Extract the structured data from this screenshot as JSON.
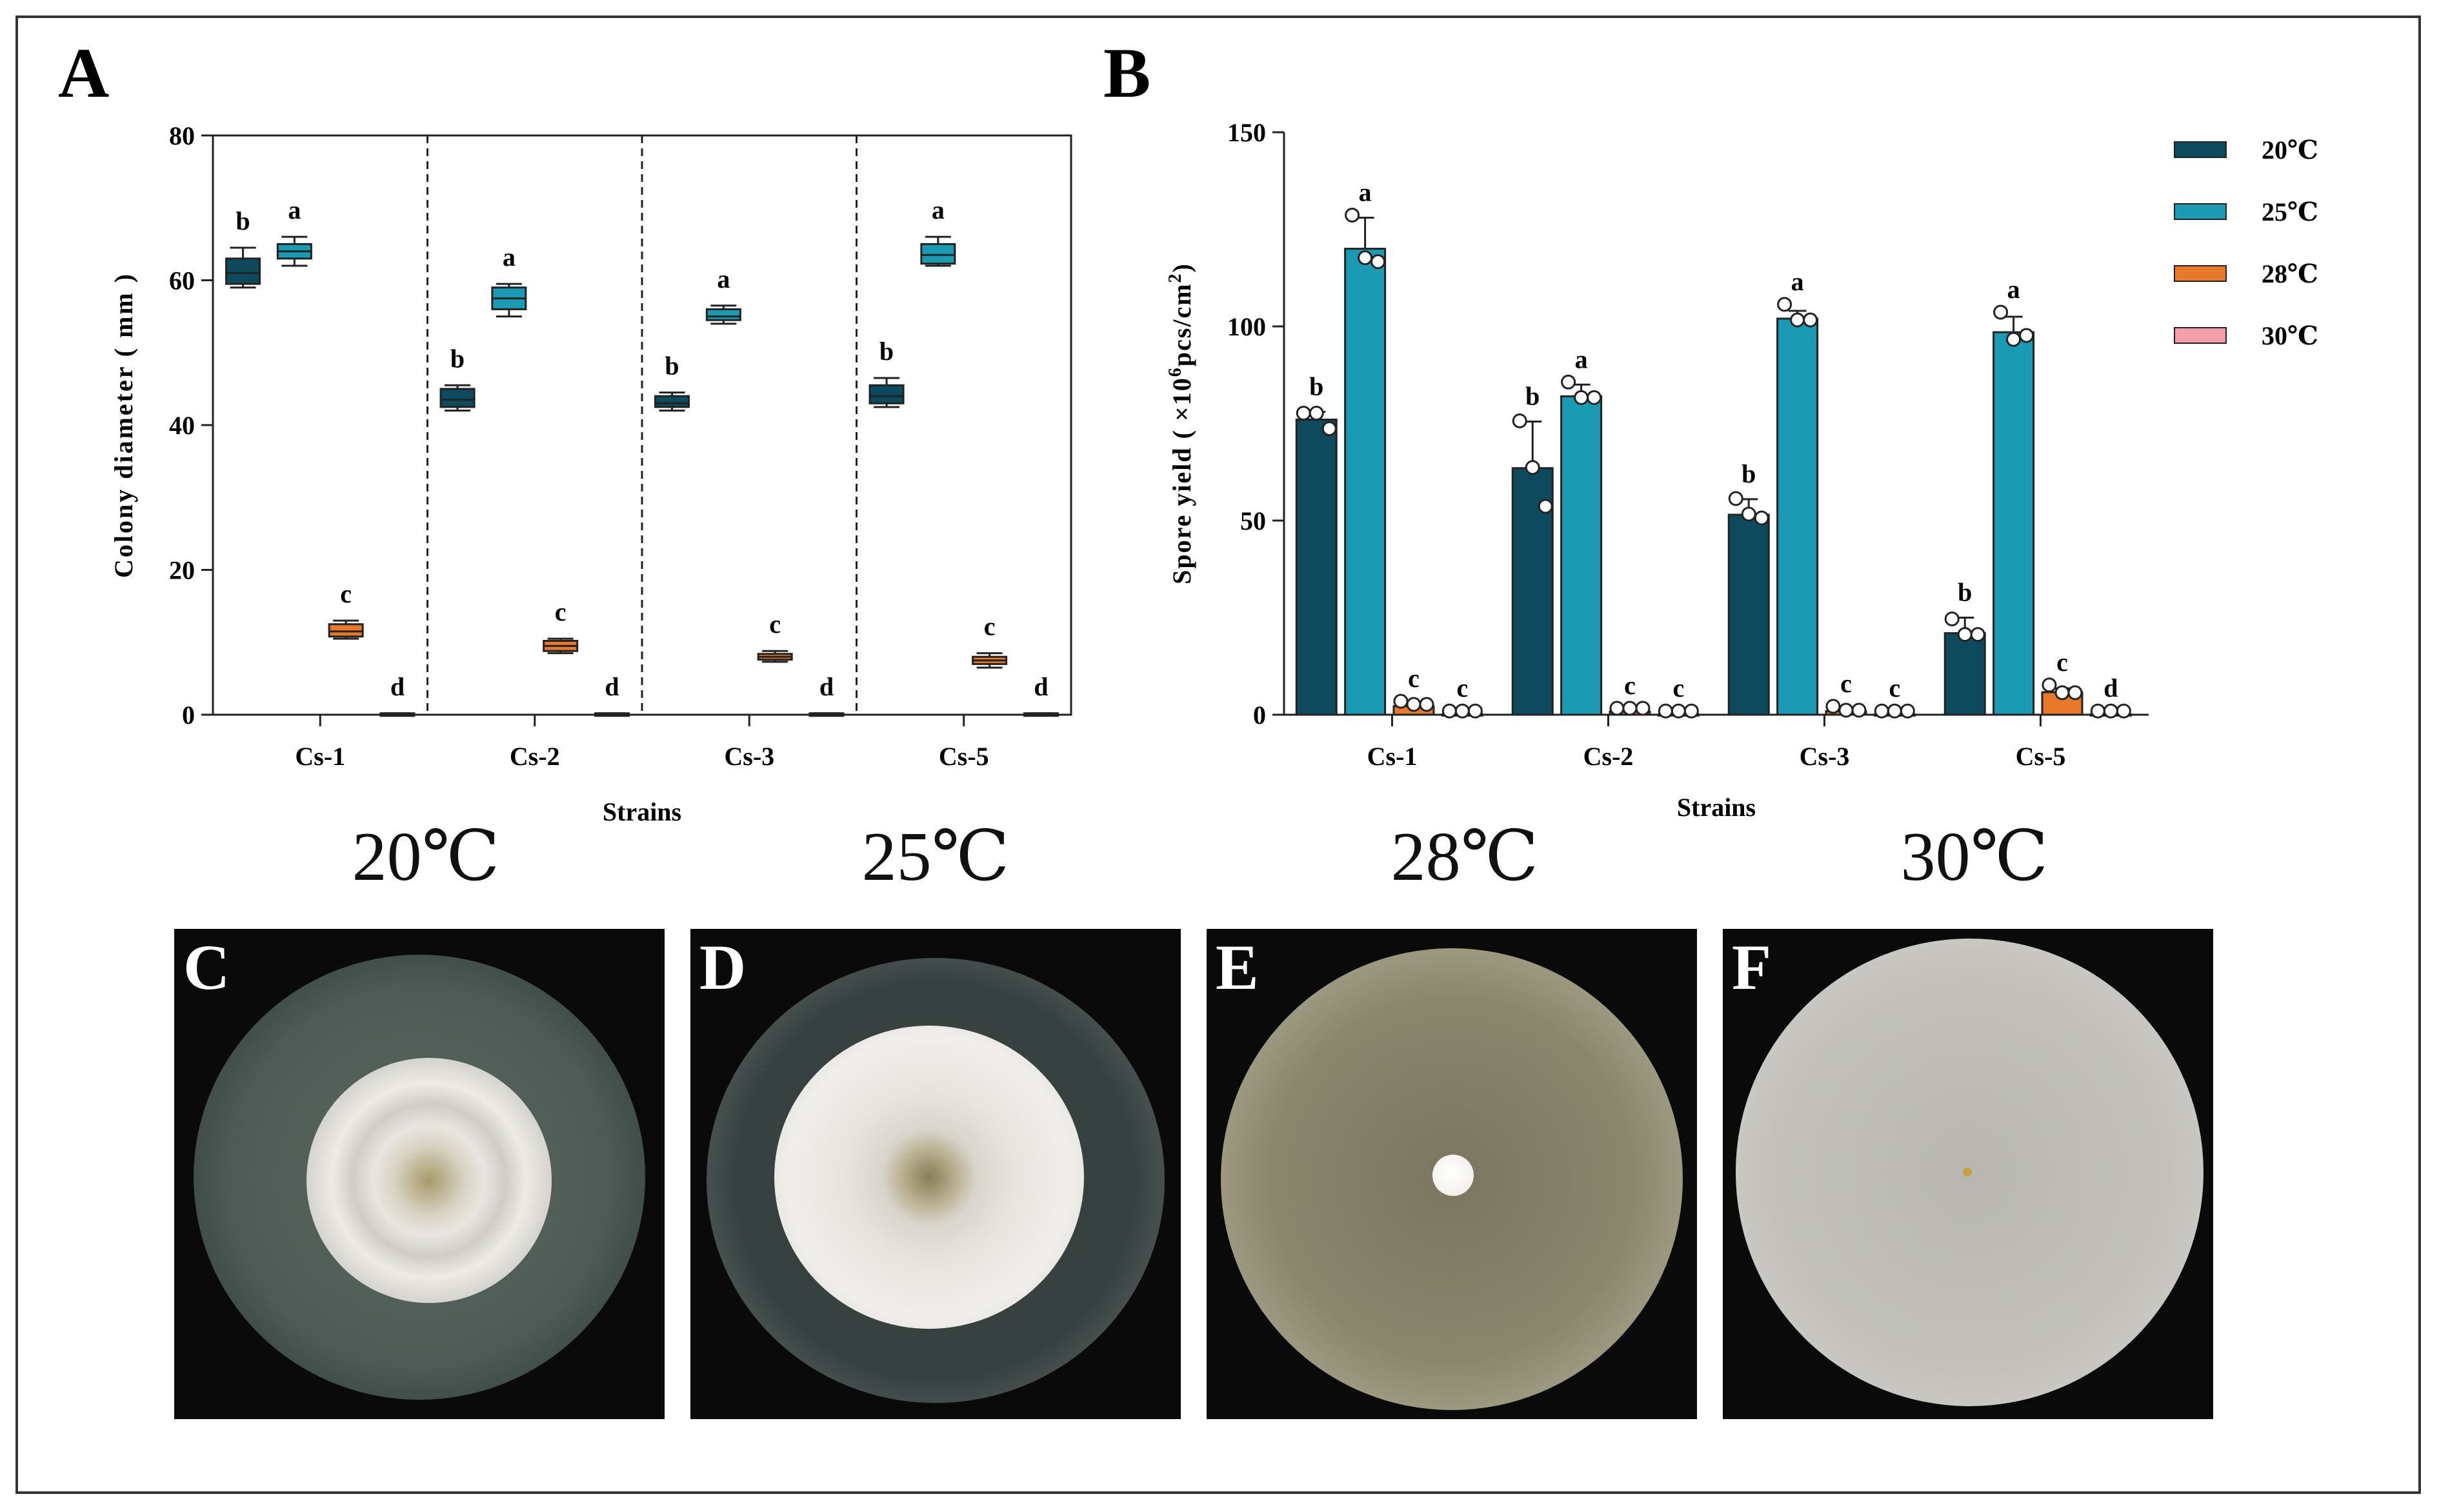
{
  "panels": {
    "A": "A",
    "B": "B",
    "C": "C",
    "D": "D",
    "E": "E",
    "F": "F"
  },
  "colors": {
    "t20": "#0e4a5e",
    "t25": "#1a9ab3",
    "t28": "#e8782a",
    "t30": "#f2a0a8"
  },
  "chart_data": [
    {
      "type": "box",
      "id": "A",
      "title": "",
      "xlabel": "Strains",
      "ylabel": "Colony diameter ( mm )",
      "ylim": [
        0,
        80
      ],
      "yticks": [
        0,
        20,
        40,
        60,
        80
      ],
      "categories": [
        "Cs-1",
        "Cs-2",
        "Cs-3",
        "Cs-5"
      ],
      "series": [
        {
          "name": "20℃",
          "color_key": "t20",
          "boxes": [
            {
              "min": 59,
              "q1": 59.5,
              "median": 61,
              "q3": 63,
              "max": 64.5,
              "label": "b"
            },
            {
              "min": 42,
              "q1": 42.5,
              "median": 43.5,
              "q3": 45,
              "max": 45.5,
              "label": "b"
            },
            {
              "min": 42,
              "q1": 42.5,
              "median": 43,
              "q3": 44,
              "max": 44.5,
              "label": "b"
            },
            {
              "min": 42.5,
              "q1": 43,
              "median": 44,
              "q3": 45.5,
              "max": 46.5,
              "label": "b"
            }
          ]
        },
        {
          "name": "25℃",
          "color_key": "t25",
          "boxes": [
            {
              "min": 62,
              "q1": 63,
              "median": 64,
              "q3": 65,
              "max": 66,
              "label": "a"
            },
            {
              "min": 55,
              "q1": 56,
              "median": 57.5,
              "q3": 59,
              "max": 59.5,
              "label": "a"
            },
            {
              "min": 54,
              "q1": 54.5,
              "median": 55,
              "q3": 56,
              "max": 56.5,
              "label": "a"
            },
            {
              "min": 62,
              "q1": 62.3,
              "median": 63.5,
              "q3": 65,
              "max": 66,
              "label": "a"
            }
          ]
        },
        {
          "name": "28℃",
          "color_key": "t28",
          "boxes": [
            {
              "min": 10.5,
              "q1": 10.8,
              "median": 11.5,
              "q3": 12.5,
              "max": 13,
              "label": "c"
            },
            {
              "min": 8.5,
              "q1": 8.8,
              "median": 9.5,
              "q3": 10.2,
              "max": 10.5,
              "label": "c"
            },
            {
              "min": 7.3,
              "q1": 7.6,
              "median": 8,
              "q3": 8.4,
              "max": 8.8,
              "label": "c"
            },
            {
              "min": 6.5,
              "q1": 7,
              "median": 7.5,
              "q3": 8,
              "max": 8.5,
              "label": "c"
            }
          ]
        },
        {
          "name": "30℃",
          "color_key": "t30",
          "boxes": [
            {
              "min": 0,
              "q1": 0,
              "median": 0,
              "q3": 0.2,
              "max": 0.2,
              "label": "d"
            },
            {
              "min": 0,
              "q1": 0,
              "median": 0,
              "q3": 0.2,
              "max": 0.2,
              "label": "d"
            },
            {
              "min": 0,
              "q1": 0,
              "median": 0,
              "q3": 0.2,
              "max": 0.2,
              "label": "d"
            },
            {
              "min": 0,
              "q1": 0,
              "median": 0,
              "q3": 0.2,
              "max": 0.2,
              "label": "d"
            }
          ]
        }
      ]
    },
    {
      "type": "bar",
      "id": "B",
      "title": "",
      "xlabel": "Strains",
      "ylabel_main": "Spore yield ( ×10",
      "ylabel_sup": "6",
      "ylabel_tail": "pcs/cm",
      "ylabel_sup2": "2",
      "ylabel_end": ")",
      "ylim": [
        0,
        150
      ],
      "yticks": [
        0,
        50,
        100,
        150
      ],
      "categories": [
        "Cs-1",
        "Cs-2",
        "Cs-3",
        "Cs-5"
      ],
      "legend": [
        "20℃",
        "25℃",
        "28℃",
        "30℃"
      ],
      "series": [
        {
          "name": "20℃",
          "color_key": "t20",
          "values": [
            76,
            63.5,
            51.5,
            21
          ],
          "err": [
            2,
            12,
            4,
            4
          ],
          "points": [
            [
              77,
              77,
              73
            ],
            [
              75,
              63,
              53
            ],
            [
              55,
              51,
              50
            ],
            [
              24,
              20,
              20
            ]
          ],
          "labels": [
            "b",
            "b",
            "b",
            "b"
          ]
        },
        {
          "name": "25℃",
          "color_key": "t25",
          "values": [
            120,
            82,
            102,
            98.5
          ],
          "err": [
            8,
            3,
            2,
            4
          ],
          "points": [
            [
              128,
              117,
              116
            ],
            [
              85,
              81,
              81
            ],
            [
              105,
              101,
              101
            ],
            [
              103,
              96,
              97
            ]
          ],
          "labels": [
            "a",
            "a",
            "a",
            "a"
          ]
        },
        {
          "name": "28℃",
          "color_key": "t28",
          "values": [
            2.2,
            0.8,
            0.9,
            5.8
          ],
          "err": [
            0.6,
            0.2,
            0.4,
            1
          ],
          "points": [
            [
              2.8,
              2,
              2
            ],
            [
              1,
              1,
              1
            ],
            [
              1.5,
              0.5,
              0.5
            ],
            [
              7,
              5,
              5
            ]
          ],
          "labels": [
            "c",
            "c",
            "c",
            "c"
          ]
        },
        {
          "name": "30℃",
          "color_key": "t30",
          "values": [
            0.1,
            0.1,
            0.1,
            0.1
          ],
          "err": [
            0,
            0,
            0,
            0
          ],
          "points": [
            [
              0.3,
              0.3,
              0.3
            ],
            [
              0.3,
              0.3,
              0.3
            ],
            [
              0.3,
              0.3,
              0.3
            ],
            [
              0.3,
              0.3,
              0.3
            ]
          ],
          "labels": [
            "c",
            "c",
            "c",
            "d"
          ]
        }
      ]
    }
  ],
  "temperatures": [
    "20℃",
    "25℃",
    "28℃",
    "30℃"
  ]
}
